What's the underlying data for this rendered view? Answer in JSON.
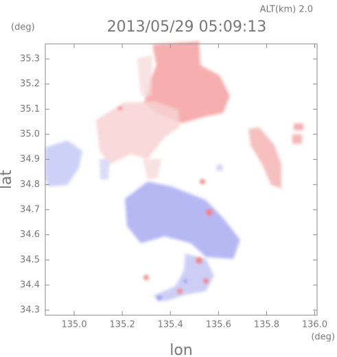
{
  "chart_data": {
    "type": "map",
    "title": "2013/05/29 05:09:13",
    "altitude_label": "ALT(km) 2.0",
    "x_label": "lon",
    "y_label": "lat",
    "x_unit": "(deg)",
    "y_unit": "(deg)",
    "xlim": [
      134.88,
      136.01
    ],
    "ylim": [
      34.28,
      35.36
    ],
    "xticks": [
      {
        "value": 135,
        "label": "135.0"
      },
      135.2,
      135.4,
      135.6,
      135.8,
      {
        "value": 136,
        "label": "136.0"
      }
    ],
    "yticks": [
      34.3,
      34.4,
      34.5,
      34.6,
      34.7,
      34.8,
      34.9,
      {
        "value": 35,
        "label": "35.0"
      },
      35.1,
      35.2,
      35.3
    ]
  }
}
